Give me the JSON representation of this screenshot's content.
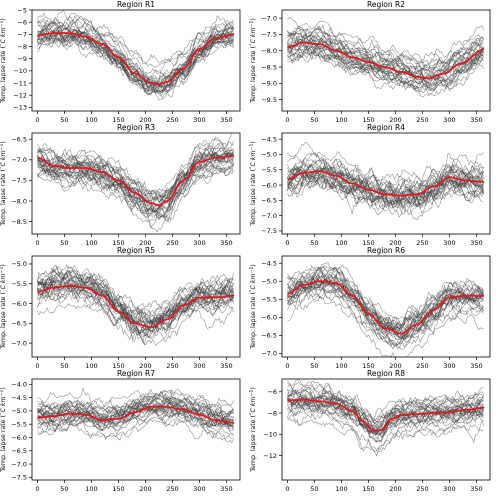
{
  "figure": {
    "ylabel_prefix": "Temp. lapse rate (",
    "ylabel_degree": "°",
    "ylabel_unit_c": "C ",
    "ylabel_unit_km": "km",
    "ylabel_exp": "−1",
    "ylabel_suffix": ")"
  },
  "colors": {
    "ensemble_line": "#3a3a3a",
    "mean_line": "#e0191e",
    "axes": "#000000",
    "background": "#ffffff"
  },
  "chart_data": [
    {
      "type": "line",
      "title": "Region R1",
      "x_ticks": [
        0,
        50,
        100,
        150,
        200,
        250,
        300,
        350
      ],
      "xlim": [
        -10,
        375
      ],
      "ylim": [
        -13.3,
        -5.0
      ],
      "y_ticks": [
        -13,
        -12,
        -11,
        -10,
        -9,
        -8,
        -7,
        -6,
        -5
      ],
      "y_tick_labels": [
        "−13",
        "−12",
        "−11",
        "−10",
        "−9",
        "−8",
        "−7",
        "−6",
        "−5"
      ],
      "mean_curve": {
        "x": [
          0,
          30,
          60,
          90,
          120,
          150,
          180,
          210,
          225,
          240,
          270,
          300,
          330,
          365
        ],
        "y": [
          -7.1,
          -6.9,
          -6.9,
          -7.2,
          -7.8,
          -8.9,
          -10.2,
          -11.0,
          -11.1,
          -10.9,
          -9.8,
          -8.2,
          -7.3,
          -7.0
        ]
      },
      "ensemble_spread": 1.2,
      "ensemble_members": 30
    },
    {
      "type": "line",
      "title": "Region R2",
      "x_ticks": [
        0,
        50,
        100,
        150,
        200,
        250,
        300,
        350
      ],
      "xlim": [
        -10,
        375
      ],
      "ylim": [
        -9.85,
        -6.75
      ],
      "y_ticks": [
        -9.5,
        -9.0,
        -8.5,
        -8.0,
        -7.5,
        -7.0
      ],
      "y_tick_labels": [
        "−9.5",
        "−9.0",
        "−8.5",
        "−8.0",
        "−7.5",
        "−7.0"
      ],
      "mean_curve": {
        "x": [
          0,
          30,
          60,
          90,
          120,
          150,
          180,
          210,
          240,
          260,
          290,
          320,
          365
        ],
        "y": [
          -7.9,
          -7.75,
          -7.8,
          -8.0,
          -8.2,
          -8.35,
          -8.5,
          -8.65,
          -8.8,
          -8.85,
          -8.7,
          -8.4,
          -7.95
        ]
      },
      "ensemble_spread": 0.45,
      "ensemble_members": 30
    },
    {
      "type": "line",
      "title": "Region R3",
      "x_ticks": [
        0,
        50,
        100,
        150,
        200,
        250,
        300,
        350
      ],
      "xlim": [
        -10,
        375
      ],
      "ylim": [
        -8.8,
        -6.35
      ],
      "y_ticks": [
        -8.5,
        -8.0,
        -7.5,
        -7.0,
        -6.5
      ],
      "y_tick_labels": [
        "−8.5",
        "−8.0",
        "−7.5",
        "−7.0",
        "−6.5"
      ],
      "mean_curve": {
        "x": [
          0,
          30,
          60,
          90,
          120,
          150,
          180,
          210,
          225,
          240,
          270,
          300,
          330,
          365
        ],
        "y": [
          -6.95,
          -7.15,
          -7.2,
          -7.2,
          -7.3,
          -7.5,
          -7.8,
          -8.05,
          -8.1,
          -8.0,
          -7.5,
          -7.05,
          -6.95,
          -6.9
        ]
      },
      "ensemble_spread": 0.4,
      "ensemble_members": 30
    },
    {
      "type": "line",
      "title": "Region R4",
      "x_ticks": [
        0,
        50,
        100,
        150,
        200,
        250,
        300,
        350
      ],
      "xlim": [
        -10,
        375
      ],
      "ylim": [
        -7.6,
        -4.3
      ],
      "y_ticks": [
        -7.5,
        -7.0,
        -6.5,
        -6.0,
        -5.5,
        -5.0,
        -4.5
      ],
      "y_tick_labels": [
        "−7.5",
        "−7.0",
        "−6.5",
        "−6.0",
        "−5.5",
        "−5.0",
        "−4.5"
      ],
      "mean_curve": {
        "x": [
          0,
          30,
          60,
          90,
          120,
          150,
          180,
          210,
          240,
          270,
          300,
          330,
          365
        ],
        "y": [
          -5.8,
          -5.6,
          -5.55,
          -5.7,
          -5.95,
          -6.15,
          -6.3,
          -6.35,
          -6.3,
          -6.05,
          -5.75,
          -5.85,
          -5.9
        ]
      },
      "ensemble_spread": 0.6,
      "ensemble_members": 30
    },
    {
      "type": "line",
      "title": "Region R5",
      "x_ticks": [
        0,
        50,
        100,
        150,
        200,
        250,
        300,
        350
      ],
      "xlim": [
        -10,
        375
      ],
      "ylim": [
        -7.35,
        -4.8
      ],
      "y_ticks": [
        -7.0,
        -6.5,
        -6.0,
        -5.5,
        -5.0
      ],
      "y_tick_labels": [
        "−7.0",
        "−6.5",
        "−6.0",
        "−5.5",
        "−5.0"
      ],
      "mean_curve": {
        "x": [
          0,
          30,
          60,
          90,
          120,
          150,
          180,
          210,
          240,
          270,
          300,
          330,
          365
        ],
        "y": [
          -5.7,
          -5.6,
          -5.55,
          -5.6,
          -5.8,
          -6.2,
          -6.5,
          -6.6,
          -6.4,
          -6.05,
          -5.85,
          -5.85,
          -5.8
        ]
      },
      "ensemble_spread": 0.45,
      "ensemble_members": 30
    },
    {
      "type": "line",
      "title": "Region R6",
      "x_ticks": [
        0,
        50,
        100,
        150,
        200,
        250,
        300,
        350
      ],
      "xlim": [
        -10,
        375
      ],
      "ylim": [
        -7.1,
        -4.3
      ],
      "y_ticks": [
        -7.0,
        -6.5,
        -6.0,
        -5.5,
        -5.0,
        -4.5
      ],
      "y_tick_labels": [
        "−7.0",
        "−6.5",
        "−6.0",
        "−5.5",
        "−5.0",
        "−4.5"
      ],
      "mean_curve": {
        "x": [
          0,
          30,
          60,
          90,
          120,
          150,
          180,
          210,
          240,
          270,
          300,
          330,
          365
        ],
        "y": [
          -5.35,
          -5.1,
          -5.0,
          -5.05,
          -5.4,
          -5.9,
          -6.3,
          -6.45,
          -6.2,
          -5.8,
          -5.45,
          -5.4,
          -5.4
        ]
      },
      "ensemble_spread": 0.45,
      "ensemble_members": 30
    },
    {
      "type": "line",
      "title": "Region R7",
      "x_ticks": [
        0,
        50,
        100,
        150,
        200,
        250,
        300,
        350
      ],
      "xlim": [
        -10,
        375
      ],
      "ylim": [
        -7.6,
        -3.8
      ],
      "y_ticks": [
        -7.5,
        -7.0,
        -6.5,
        -6.0,
        -5.5,
        -5.0,
        -4.5,
        -4.0
      ],
      "y_tick_labels": [
        "−7.5",
        "−7.0",
        "−6.5",
        "−6.0",
        "−5.5",
        "−5.0",
        "−4.5",
        "−4.0"
      ],
      "mean_curve": {
        "x": [
          0,
          30,
          60,
          90,
          120,
          150,
          180,
          210,
          240,
          270,
          300,
          330,
          365
        ],
        "y": [
          -5.25,
          -5.2,
          -5.1,
          -5.15,
          -5.35,
          -5.3,
          -5.05,
          -4.85,
          -4.85,
          -4.95,
          -5.15,
          -5.35,
          -5.45
        ]
      },
      "ensemble_spread": 0.55,
      "ensemble_members": 30
    },
    {
      "type": "line",
      "title": "Region R8",
      "x_ticks": [
        0,
        50,
        100,
        150,
        200,
        250,
        300,
        350
      ],
      "xlim": [
        -10,
        375
      ],
      "ylim": [
        -14.3,
        -4.8
      ],
      "y_ticks": [
        -12,
        -10,
        -8,
        -6
      ],
      "y_tick_labels": [
        "−12",
        "−10",
        "−8",
        "−6"
      ],
      "mean_curve": {
        "x": [
          0,
          30,
          60,
          90,
          120,
          140,
          160,
          175,
          190,
          210,
          240,
          270,
          300,
          330,
          365
        ],
        "y": [
          -6.8,
          -6.75,
          -6.9,
          -7.1,
          -7.8,
          -8.8,
          -9.7,
          -9.6,
          -8.6,
          -8.2,
          -8.1,
          -8.0,
          -7.9,
          -7.7,
          -7.5
        ]
      },
      "ensemble_spread": 1.4,
      "ensemble_members": 30
    }
  ]
}
